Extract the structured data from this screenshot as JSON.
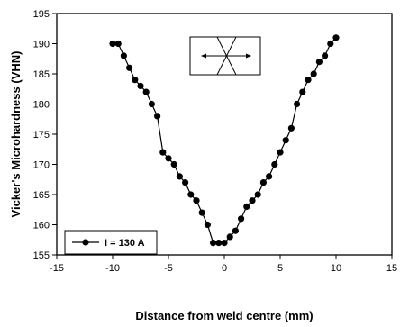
{
  "chart_data": {
    "type": "line",
    "xlabel": "Distance from weld centre (mm)",
    "ylabel": "Vicker's Microhardness (VHN)",
    "xlim": [
      -15,
      15
    ],
    "ylim": [
      155,
      195
    ],
    "x_ticks": [
      -15,
      -10,
      -5,
      0,
      5,
      10,
      15
    ],
    "y_ticks": [
      155,
      160,
      165,
      170,
      175,
      180,
      185,
      190,
      195
    ],
    "grid": false,
    "legend_position": "bottom-left",
    "series": [
      {
        "name": "I = 130 A",
        "marker": "circle",
        "color": "#000000",
        "x": [
          -10.0,
          -9.5,
          -9.0,
          -8.5,
          -8.0,
          -7.5,
          -7.0,
          -6.5,
          -6.0,
          -5.5,
          -5.0,
          -4.5,
          -4.0,
          -3.5,
          -3.0,
          -2.5,
          -2.0,
          -1.5,
          -1.0,
          -0.5,
          0.0,
          0.5,
          1.0,
          1.5,
          2.0,
          2.5,
          3.0,
          3.5,
          4.0,
          4.5,
          5.0,
          5.5,
          6.0,
          6.5,
          7.0,
          7.5,
          8.0,
          8.5,
          9.0,
          9.5,
          10.0
        ],
        "y": [
          190,
          190,
          188,
          186,
          184,
          183,
          182,
          180,
          178,
          172,
          171,
          170,
          168,
          167,
          165,
          164,
          162,
          160,
          157,
          157,
          157,
          158,
          159,
          161,
          163,
          164,
          165,
          167,
          168,
          170,
          172,
          174,
          176,
          180,
          182,
          184,
          185,
          187,
          188,
          190,
          191
        ]
      }
    ]
  },
  "inset_icon": "weld-profile-schematic-icon"
}
